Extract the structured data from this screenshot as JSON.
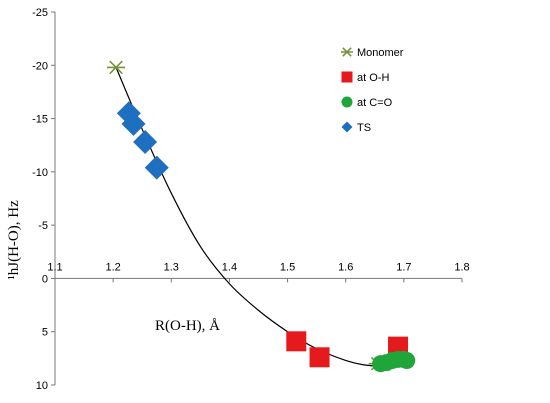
{
  "chart_data": {
    "type": "scatter",
    "xlabel": "R(O-H), Å",
    "ylabel": "¹hJ(H-O), Hz",
    "xlim": [
      1.1,
      1.8
    ],
    "ylim": [
      -25,
      10
    ],
    "y_reversed": true,
    "x_axis_crosses_at_y": 0,
    "x_ticks": [
      "1.1",
      "1.2",
      "1.3",
      "1.4",
      "1.5",
      "1.6",
      "1.7",
      "1.8"
    ],
    "y_ticks": [
      "-25",
      "-20",
      "-15",
      "-10",
      "-5",
      "0",
      "5",
      "10"
    ],
    "legend_position": "right",
    "series": [
      {
        "name": "Monomer",
        "marker": "star",
        "color": "#77933C",
        "points": [
          {
            "x": 1.205,
            "y": -19.8
          },
          {
            "x": 1.655,
            "y": 8.0
          }
        ]
      },
      {
        "name": "at O-H",
        "marker": "square",
        "color": "#E41A1C",
        "points": [
          {
            "x": 1.515,
            "y": 5.9
          },
          {
            "x": 1.555,
            "y": 7.4
          },
          {
            "x": 1.69,
            "y": 6.4
          }
        ]
      },
      {
        "name": "at C=O",
        "marker": "circle",
        "color": "#1FA53A",
        "points": [
          {
            "x": 1.66,
            "y": 8.0
          },
          {
            "x": 1.67,
            "y": 7.9
          },
          {
            "x": 1.68,
            "y": 7.7
          },
          {
            "x": 1.69,
            "y": 7.6
          },
          {
            "x": 1.7,
            "y": 7.6
          },
          {
            "x": 1.705,
            "y": 7.7
          }
        ]
      },
      {
        "name": "TS",
        "marker": "diamond",
        "color": "#1F6FC0",
        "points": [
          {
            "x": 1.227,
            "y": -15.5
          },
          {
            "x": 1.235,
            "y": -14.5
          },
          {
            "x": 1.255,
            "y": -12.8
          },
          {
            "x": 1.275,
            "y": -10.4
          }
        ]
      }
    ],
    "fit_curve": {
      "color": "#000000",
      "points": [
        {
          "x": 1.205,
          "y": -19.8
        },
        {
          "x": 1.25,
          "y": -14.0
        },
        {
          "x": 1.3,
          "y": -8.0
        },
        {
          "x": 1.35,
          "y": -3.0
        },
        {
          "x": 1.4,
          "y": 0.5
        },
        {
          "x": 1.45,
          "y": 3.0
        },
        {
          "x": 1.5,
          "y": 5.0
        },
        {
          "x": 1.55,
          "y": 6.6
        },
        {
          "x": 1.6,
          "y": 7.7
        },
        {
          "x": 1.63,
          "y": 8.1
        },
        {
          "x": 1.66,
          "y": 8.2
        },
        {
          "x": 1.69,
          "y": 7.9
        },
        {
          "x": 1.705,
          "y": 7.4
        }
      ]
    }
  }
}
